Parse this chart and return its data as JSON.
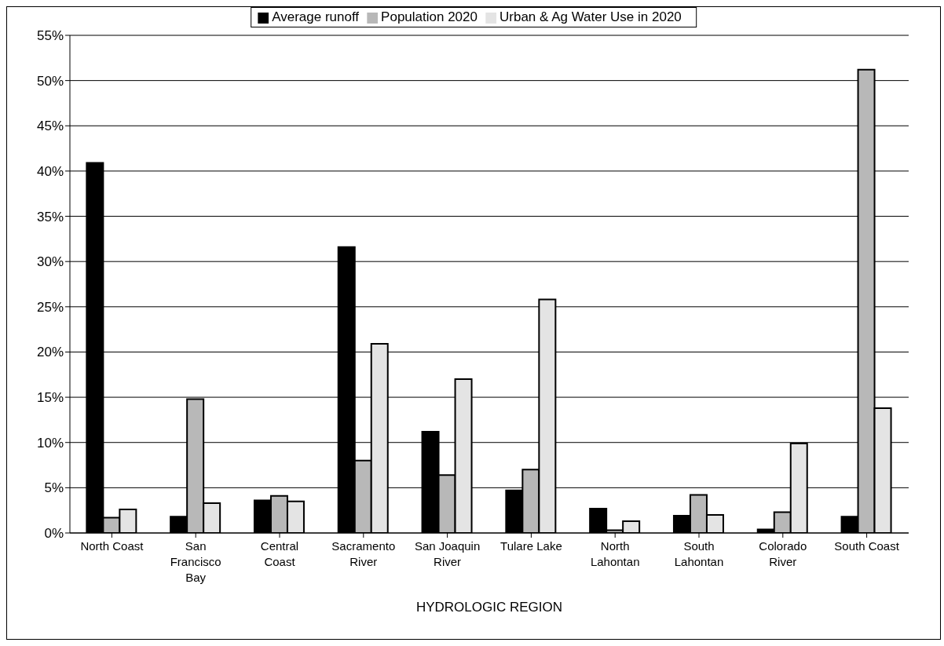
{
  "chart_data": {
    "type": "bar",
    "xlabel": "HYDROLOGIC REGION",
    "categories": [
      "North Coast",
      "San Francisco Bay",
      "Central Coast",
      "Sacramento River",
      "San Joaquin River",
      "Tulare Lake",
      "North Lahontan",
      "South Lahontan",
      "Colorado River",
      "South Coast"
    ],
    "series": [
      {
        "name": "Average runoff",
        "color": "#000000",
        "values": [
          40.9,
          1.8,
          3.6,
          31.6,
          11.2,
          4.7,
          2.7,
          1.9,
          0.4,
          1.8
        ]
      },
      {
        "name": "Population 2020",
        "color": "#b8b8b8",
        "values": [
          1.7,
          14.8,
          4.1,
          8.0,
          6.4,
          7.0,
          0.3,
          4.2,
          2.3,
          51.2
        ]
      },
      {
        "name": "Urban & Ag Water Use in 2020",
        "color": "#e4e4e4",
        "values": [
          2.6,
          3.3,
          3.5,
          20.9,
          17.0,
          25.8,
          1.3,
          2.0,
          9.9,
          13.8
        ]
      }
    ],
    "ylim": [
      0,
      55
    ],
    "yticks": [
      {
        "value": 0,
        "label": "0%"
      },
      {
        "value": 5,
        "label": "5%"
      },
      {
        "value": 10,
        "label": "10%"
      },
      {
        "value": 15,
        "label": "15%"
      },
      {
        "value": 20,
        "label": "20%"
      },
      {
        "value": 25,
        "label": "25%"
      },
      {
        "value": 30,
        "label": "30%"
      },
      {
        "value": 35,
        "label": "35%"
      },
      {
        "value": 40,
        "label": "40%"
      },
      {
        "value": 45,
        "label": "45%"
      },
      {
        "value": 50,
        "label": "50%"
      },
      {
        "value": 55,
        "label": "55%"
      }
    ],
    "grid": "y",
    "legend": "top"
  }
}
